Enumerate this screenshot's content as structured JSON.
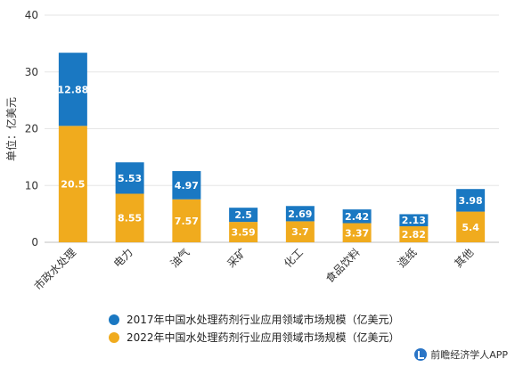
{
  "chart_data": {
    "type": "bar",
    "stacked": true,
    "categories": [
      "市政水处理",
      "电力",
      "油气",
      "采矿",
      "化工",
      "食品饮料",
      "造纸",
      "其他"
    ],
    "series": [
      {
        "name": "2022年中国水处理药剂行业应用领域市场规模（亿美元）",
        "color": "#f0ab1e",
        "values": [
          20.5,
          8.55,
          7.57,
          3.59,
          3.7,
          3.37,
          2.82,
          5.4
        ],
        "labels": [
          "20.5",
          "8.55",
          "7.57",
          "3.59",
          "3.7",
          "3.37",
          "2.82",
          "5.4"
        ]
      },
      {
        "name": "2017年中国水处理药剂行业应用领域市场规模（亿美元）",
        "color": "#1a78c2",
        "values": [
          12.88,
          5.53,
          4.97,
          2.5,
          2.69,
          2.42,
          2.13,
          3.98
        ],
        "labels": [
          "12.88",
          "5.53",
          "4.97",
          "2.5",
          "2.69",
          "2.42",
          "2.13",
          "3.98"
        ]
      }
    ],
    "ylabel": "单位：亿美元",
    "ylim": [
      0,
      40
    ],
    "yticks": [
      "0",
      "10",
      "20",
      "30",
      "40"
    ],
    "grid": true,
    "legend_position": "bottom"
  },
  "source_text": "前瞻经济学人APP",
  "colors": {
    "grid": "#e6e6e6",
    "axis": "#bfbfbf"
  }
}
